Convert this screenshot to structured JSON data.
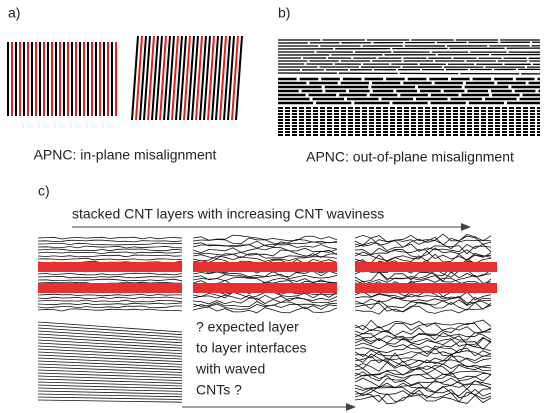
{
  "panels": {
    "a": {
      "label": "a)",
      "caption": "APNC: in-plane misalignment"
    },
    "b": {
      "label": "b)",
      "caption": "APNC: out-of-plane misalignment"
    },
    "c": {
      "label": "c)",
      "title": "stacked CNT layers with increasing CNT waviness",
      "note": [
        "? expected layer",
        "to layer interfaces",
        "with waved",
        "CNTs ?"
      ]
    }
  }
}
